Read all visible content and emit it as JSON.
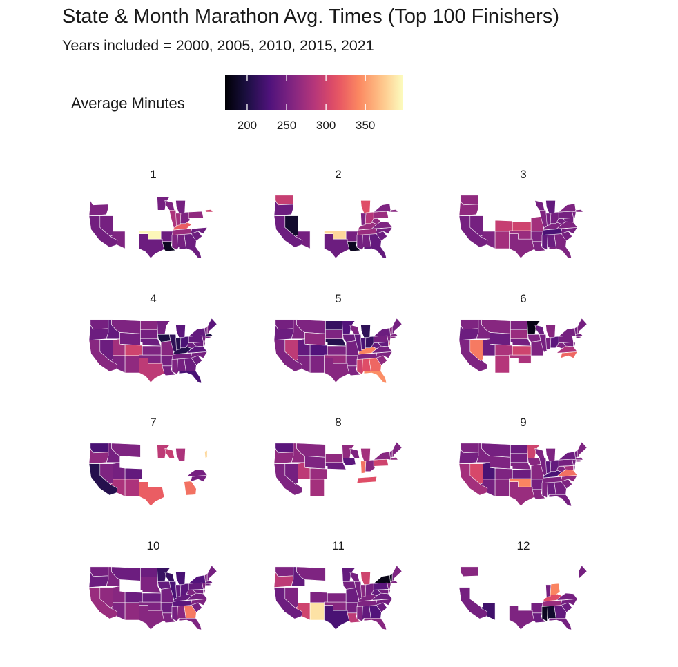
{
  "chart_data": {
    "type": "heatmap",
    "title": "State & Month Marathon Avg. Times (Top 100 Finishers)",
    "subtitle": "Years included = 2000, 2005, 2010, 2015, 2021",
    "legend": {
      "title": "Average Minutes",
      "ticks": [
        200,
        250,
        300,
        350
      ],
      "range": [
        172,
        398
      ],
      "palette": "magma"
    },
    "facets": [
      {
        "label": "1",
        "values": {
          "WA": null,
          "OR": 255,
          "CA": 248,
          "NV": 250,
          "AZ": 255,
          "TX": 245,
          "OK": 395,
          "AR": 245,
          "LA": 185,
          "MS": 255,
          "AL": 250,
          "GA": 245,
          "FL": 245,
          "SC": 245,
          "NC": 245,
          "TN": 270,
          "KY": 320,
          "MN": 250,
          "WI": 255,
          "IL": 280,
          "IN": 275,
          "OH": 255,
          "MI": 250,
          "PA": 265,
          "NY": null,
          "VA": null,
          "NJ": null,
          "MA": 300,
          "ME": null,
          "NH": null,
          "VT": null,
          "CT": null,
          "MD": null,
          "DE": null,
          "RI": null,
          "WV": null,
          "ID": null,
          "MT": null,
          "WY": null,
          "UT": null,
          "CO": null,
          "NM": null,
          "ND": null,
          "SD": null,
          "NE": null,
          "KS": null,
          "IA": null,
          "MO": null
        }
      },
      {
        "label": "2",
        "values": {
          "WA": 295,
          "OR": 245,
          "CA": 245,
          "NV": 190,
          "AZ": 250,
          "TX": 245,
          "OK": 380,
          "AR": 250,
          "LA": 185,
          "MS": 250,
          "AL": 250,
          "GA": 240,
          "FL": 240,
          "SC": 245,
          "NC": 250,
          "TN": 270,
          "KY": 270,
          "MI": 310,
          "OH": 285,
          "IN": 255,
          "PA": 270,
          "NY": 255,
          "MA": 260,
          "VA": 255,
          "WV": 265,
          "ME": null,
          "NH": null,
          "VT": null,
          "CT": null,
          "NJ": null,
          "MD": null,
          "DE": null,
          "RI": null,
          "ID": null,
          "MT": null,
          "WY": null,
          "UT": null,
          "CO": null,
          "NM": null,
          "ND": null,
          "SD": null,
          "NE": null,
          "KS": null,
          "IA": null,
          "MO": null,
          "MN": null,
          "WI": null,
          "IL": null
        }
      },
      {
        "label": "3",
        "values": {
          "WA": 265,
          "OR": 265,
          "CA": 250,
          "NV": 250,
          "AZ": 255,
          "UT": null,
          "CO": 295,
          "NM": 275,
          "TX": 260,
          "OK": 270,
          "KS": 300,
          "MO": 275,
          "AR": 255,
          "LA": 255,
          "MS": 240,
          "AL": 245,
          "GA": 255,
          "FL": 255,
          "SC": 250,
          "NC": 250,
          "TN": 225,
          "KY": 255,
          "IN": 250,
          "OH": 250,
          "MI": 240,
          "WI": 250,
          "IL": 255,
          "PA": 250,
          "NY": 255,
          "VA": 255,
          "WV": 250,
          "MA": 255,
          "NJ": 250,
          "MD": 250,
          "ME": null,
          "NH": null,
          "VT": null,
          "CT": null,
          "DE": null,
          "RI": null,
          "ID": null,
          "MT": null,
          "WY": null,
          "ND": null,
          "SD": null,
          "NE": null,
          "IA": null,
          "MN": null
        }
      },
      {
        "label": "4",
        "values": {
          "WA": 250,
          "OR": 245,
          "CA": 260,
          "NV": 245,
          "ID": 240,
          "MT": 255,
          "WY": 250,
          "UT": 275,
          "CO": 300,
          "AZ": 255,
          "NM": 265,
          "TX": 290,
          "OK": 255,
          "KS": 255,
          "NE": 245,
          "SD": 250,
          "ND": 260,
          "MN": 250,
          "IA": 200,
          "MO": 260,
          "AR": 250,
          "LA": 250,
          "MS": 255,
          "AL": 250,
          "GA": 245,
          "FL": 225,
          "SC": 245,
          "NC": 250,
          "TN": 250,
          "KY": 205,
          "IL": 210,
          "IN": 205,
          "OH": 225,
          "MI": 235,
          "WI": null,
          "PA": 240,
          "NY": 240,
          "VA": 235,
          "WV": 245,
          "MA": 200,
          "VT": 250,
          "NH": 255,
          "ME": 235,
          "CT": 250,
          "NJ": 250,
          "MD": 245,
          "DE": 250,
          "RI": 250
        }
      },
      {
        "label": "5",
        "values": {
          "WA": 250,
          "OR": 245,
          "CA": 255,
          "NV": 290,
          "ID": 255,
          "MT": 255,
          "WY": 265,
          "UT": 240,
          "CO": 230,
          "AZ": 255,
          "NM": 255,
          "TX": 260,
          "OK": 270,
          "KS": 255,
          "NE": 205,
          "SD": 255,
          "ND": 215,
          "MN": 230,
          "IA": 245,
          "MO": 250,
          "AR": 255,
          "LA": 255,
          "MS": 300,
          "AL": 310,
          "GA": 325,
          "FL": 345,
          "SC": 265,
          "NC": 255,
          "TN": 255,
          "KY": 340,
          "IL": 240,
          "IN": 225,
          "OH": 215,
          "MI": 210,
          "WI": 255,
          "PA": 250,
          "NY": 245,
          "VA": 250,
          "WV": 240,
          "MA": 255,
          "VT": 260,
          "NH": 250,
          "ME": 250,
          "CT": 260,
          "NJ": 255,
          "MD": 240,
          "DE": 300,
          "RI": 250
        }
      },
      {
        "label": "6",
        "values": {
          "WA": 255,
          "OR": 245,
          "CA": 255,
          "NV": 335,
          "ID": 255,
          "MT": 260,
          "WY": 245,
          "UT": 245,
          "CO": 280,
          "AZ": null,
          "NM": 285,
          "TX": null,
          "OK": 280,
          "KS": 300,
          "NE": 250,
          "SD": 270,
          "ND": 255,
          "MN": 180,
          "IA": 255,
          "MO": 255,
          "AR": null,
          "LA": null,
          "MS": null,
          "AL": null,
          "GA": null,
          "FL": null,
          "SC": null,
          "NC": 325,
          "TN": null,
          "KY": null,
          "IL": 250,
          "IN": 250,
          "OH": 235,
          "MI": 260,
          "WI": 245,
          "PA": 250,
          "NY": 250,
          "VA": 280,
          "WV": 255,
          "MA": 250,
          "VT": 250,
          "NH": 255,
          "ME": 250,
          "CT": 250,
          "NJ": null,
          "MD": 250,
          "DE": 250,
          "RI": 250
        }
      },
      {
        "label": "7",
        "values": {
          "WA": 225,
          "OR": 265,
          "CA": 205,
          "NV": 255,
          "ID": 250,
          "MT": 255,
          "WY": null,
          "UT": 250,
          "CO": 240,
          "AZ": 280,
          "NM": 280,
          "TX": 320,
          "OK": null,
          "KS": null,
          "NE": null,
          "SD": null,
          "ND": null,
          "MN": 290,
          "IA": null,
          "MO": null,
          "AR": null,
          "LA": null,
          "MS": null,
          "AL": null,
          "GA": 330,
          "FL": null,
          "SC": null,
          "NC": 250,
          "TN": null,
          "KY": null,
          "IL": null,
          "IN": null,
          "OH": null,
          "MI": 280,
          "WI": 295,
          "PA": null,
          "NY": null,
          "VA": 250,
          "WV": null,
          "MA": null,
          "VT": 380,
          "NH": null,
          "ME": null,
          "CT": null,
          "NJ": null,
          "MD": null,
          "DE": null,
          "RI": null
        }
      },
      {
        "label": "8",
        "values": {
          "WA": 235,
          "OR": 265,
          "CA": 255,
          "NV": 250,
          "ID": 265,
          "MT": 260,
          "WY": 255,
          "UT": 290,
          "CO": 270,
          "AZ": null,
          "NM": 275,
          "TX": null,
          "OK": null,
          "KS": null,
          "NE": 245,
          "SD": 265,
          "ND": null,
          "MN": 265,
          "IA": 235,
          "MO": null,
          "AR": null,
          "LA": null,
          "MS": null,
          "AL": null,
          "GA": null,
          "FL": null,
          "SC": null,
          "NC": null,
          "TN": 310,
          "KY": null,
          "IL": null,
          "IN": 330,
          "OH": 260,
          "MI": 275,
          "WI": 255,
          "PA": 300,
          "NY": 260,
          "VA": null,
          "WV": null,
          "MA": 265,
          "VT": 255,
          "NH": 260,
          "ME": 255,
          "CT": null,
          "NJ": null,
          "MD": null,
          "DE": null,
          "RI": null
        }
      },
      {
        "label": "9",
        "values": {
          "WA": 255,
          "OR": 250,
          "CA": 275,
          "NV": 305,
          "ID": 255,
          "MT": 250,
          "WY": 255,
          "UT": 225,
          "CO": 255,
          "AZ": 250,
          "NM": 260,
          "TX": 270,
          "OK": 340,
          "KS": 245,
          "NE": 255,
          "SD": 250,
          "ND": 245,
          "MN": 300,
          "IA": 260,
          "MO": 260,
          "AR": 250,
          "LA": 260,
          "MS": 255,
          "AL": 245,
          "GA": 250,
          "FL": 250,
          "SC": 255,
          "NC": 265,
          "TN": 255,
          "KY": 225,
          "IL": 250,
          "IN": 235,
          "OH": 240,
          "MI": 255,
          "WI": 255,
          "PA": 250,
          "NY": 245,
          "VA": 330,
          "WV": 255,
          "MA": 255,
          "VT": 250,
          "NH": 255,
          "ME": 255,
          "CT": 260,
          "NJ": 250,
          "MD": 275,
          "DE": 250,
          "RI": 250
        }
      },
      {
        "label": "10",
        "values": {
          "WA": 250,
          "OR": 245,
          "CA": 270,
          "NV": 265,
          "ID": 255,
          "MT": 245,
          "WY": null,
          "UT": 260,
          "CO": 245,
          "AZ": 255,
          "NM": 265,
          "TX": 260,
          "OK": 255,
          "KS": 245,
          "NE": 255,
          "SD": 255,
          "ND": 245,
          "MN": 215,
          "IA": 240,
          "MO": 250,
          "AR": 245,
          "LA": 255,
          "MS": 250,
          "AL": 260,
          "GA": 335,
          "FL": 255,
          "SC": 250,
          "NC": 255,
          "TN": 235,
          "KY": 240,
          "IL": 225,
          "IN": 240,
          "OH": 235,
          "MI": 225,
          "WI": 215,
          "PA": 240,
          "NY": 230,
          "VA": 250,
          "WV": 255,
          "MA": 245,
          "VT": 255,
          "NH": 250,
          "ME": 250,
          "CT": 245,
          "NJ": 255,
          "MD": 250,
          "DE": 255,
          "RI": 250
        }
      },
      {
        "label": "11",
        "values": {
          "WA": 255,
          "OR": 290,
          "CA": 245,
          "NV": 255,
          "ID": 240,
          "MT": 255,
          "WY": null,
          "UT": null,
          "CO": 255,
          "AZ": 300,
          "NM": 385,
          "TX": 225,
          "OK": 260,
          "KS": 255,
          "NE": null,
          "SD": null,
          "ND": null,
          "MN": 240,
          "IA": 250,
          "MO": 245,
          "AR": 250,
          "LA": 290,
          "MS": 255,
          "AL": 240,
          "GA": 230,
          "FL": 260,
          "SC": 245,
          "NC": 250,
          "TN": 255,
          "KY": 255,
          "IL": 250,
          "IN": 260,
          "OH": 250,
          "MI": 300,
          "WI": 250,
          "PA": 235,
          "NY": 180,
          "VA": 245,
          "WV": 240,
          "MA": 255,
          "VT": 185,
          "NH": 250,
          "ME": 255,
          "CT": null,
          "NJ": 255,
          "MD": 250,
          "DE": 255,
          "RI": null
        }
      },
      {
        "label": "12",
        "values": {
          "WA": 260,
          "OR": null,
          "CA": 250,
          "NV": null,
          "ID": null,
          "MT": null,
          "WY": null,
          "UT": null,
          "CO": null,
          "AZ": 220,
          "NM": null,
          "TX": 255,
          "OK": null,
          "KS": null,
          "NE": null,
          "SD": null,
          "ND": null,
          "MN": null,
          "IA": null,
          "MO": null,
          "AR": 250,
          "LA": 245,
          "MS": 185,
          "AL": 190,
          "GA": 240,
          "FL": 250,
          "SC": 245,
          "NC": 250,
          "TN": 270,
          "KY": 310,
          "IL": null,
          "IN": 250,
          "OH": 340,
          "MI": null,
          "WI": null,
          "PA": null,
          "NY": null,
          "VA": 250,
          "WV": null,
          "MA": null,
          "VT": null,
          "NH": null,
          "ME": 250,
          "CT": null,
          "NJ": null,
          "MD": null,
          "DE": null,
          "RI": null
        }
      }
    ]
  }
}
